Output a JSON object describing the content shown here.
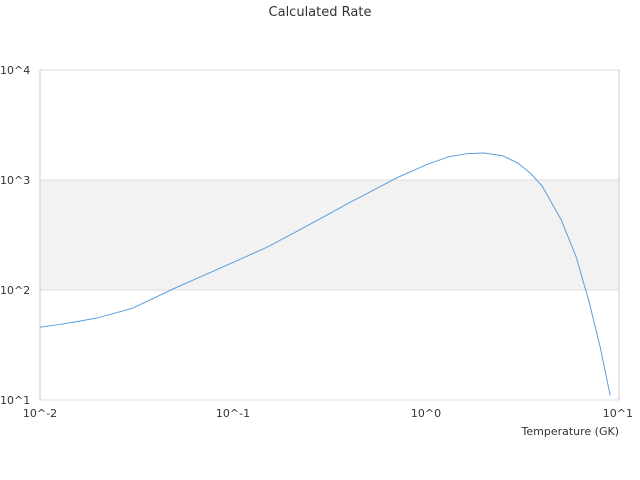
{
  "chart_data": {
    "type": "line",
    "title": "Calculated Rate",
    "xlabel": "Temperature (GK)",
    "ylabel": "",
    "x_scale": "log",
    "y_scale": "log",
    "xlim": [
      0.01,
      10
    ],
    "ylim": [
      10,
      10000
    ],
    "x_ticks": [
      "10^-2",
      "10^-1",
      "10^0",
      "10^1"
    ],
    "y_ticks": [
      "10^1",
      "10^2",
      "10^3",
      "10^4"
    ],
    "grid": "horizontal",
    "legend": "none",
    "series": [
      {
        "color": "#5b9fe0",
        "x": [
          0.01,
          0.012,
          0.015,
          0.02,
          0.03,
          0.05,
          0.07,
          0.1,
          0.15,
          0.2,
          0.3,
          0.4,
          0.5,
          0.7,
          1.0,
          1.3,
          1.6,
          2.0,
          2.5,
          3.0,
          3.5,
          4.0,
          5.0,
          6.0,
          7.0,
          8.0,
          9.0
        ],
        "y": [
          46,
          48,
          51,
          56,
          68,
          104,
          135,
          178,
          245,
          320,
          470,
          620,
          760,
          1040,
          1370,
          1620,
          1730,
          1760,
          1660,
          1420,
          1140,
          880,
          440,
          200,
          78,
          30,
          11
        ],
        "values": [
          46,
          48,
          51,
          56,
          68,
          104,
          135,
          178,
          245,
          320,
          470,
          620,
          760,
          1040,
          1370,
          1620,
          1730,
          1760,
          1660,
          1420,
          1140,
          880,
          440,
          200,
          78,
          30,
          11
        ]
      }
    ]
  },
  "colors": {
    "band": "#f2f2f2",
    "grid": "#dddddd",
    "axis": "#cccccc"
  }
}
